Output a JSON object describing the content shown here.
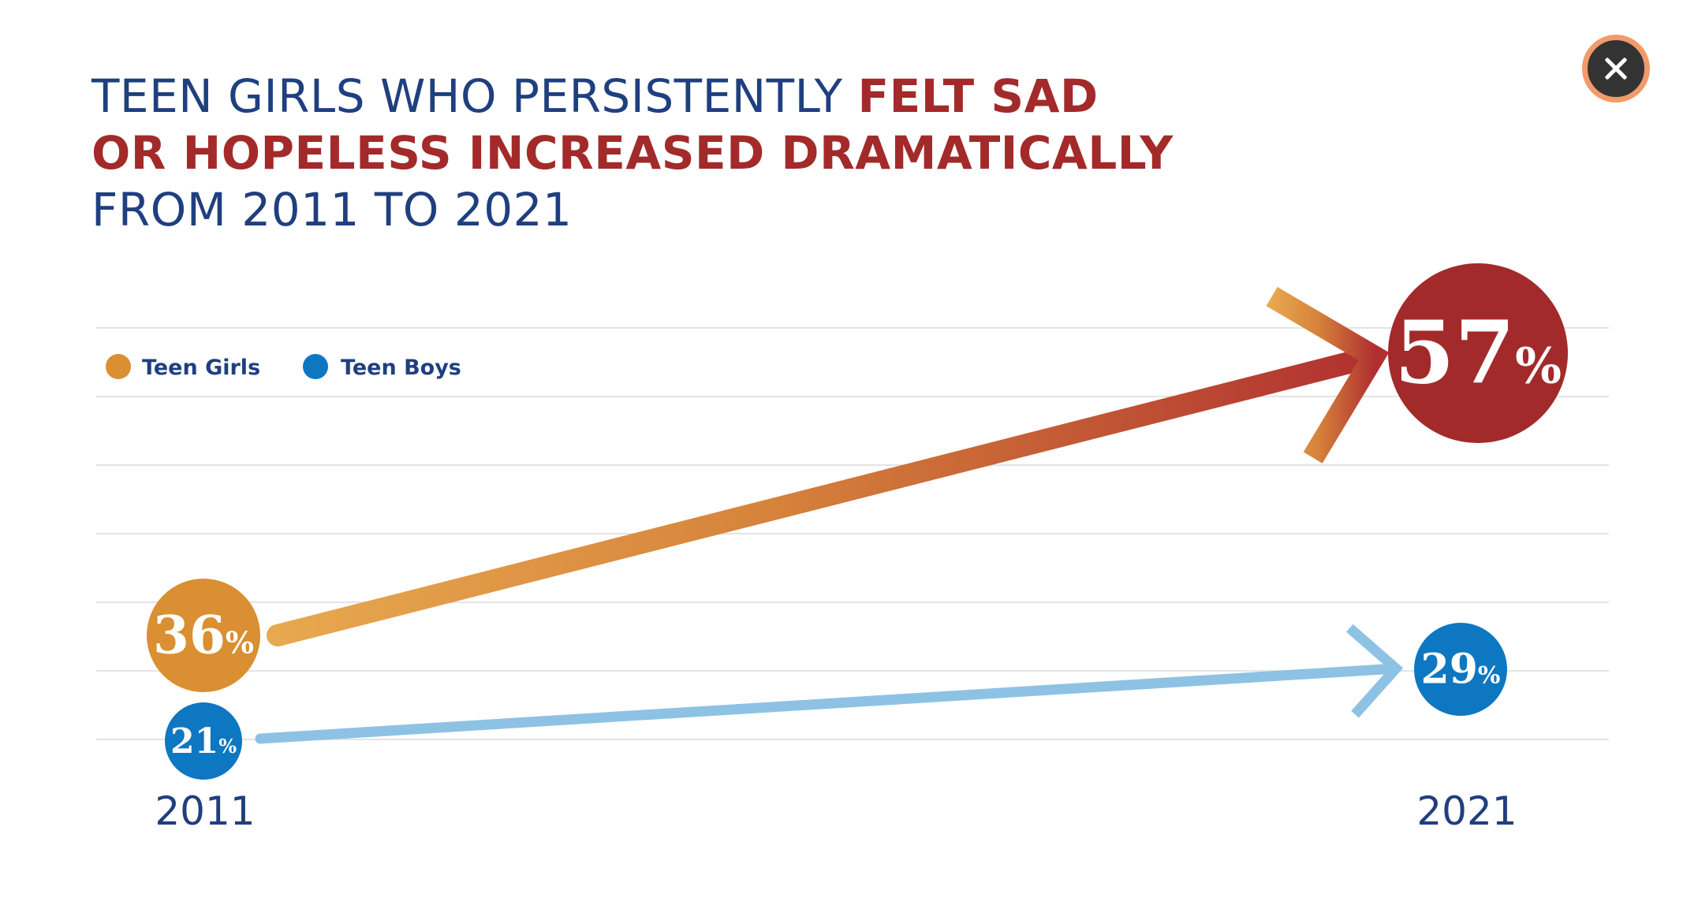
{
  "title": {
    "part1": "TEEN GIRLS WHO PERSISTENTLY ",
    "part2": "FELT SAD",
    "part3": "OR HOPELESS INCREASED DRAMATICALLY",
    "part4": "FROM 2011 TO 2021"
  },
  "close_icon": "close-icon",
  "chart_data": {
    "type": "line",
    "x": [
      "2011",
      "2021"
    ],
    "series": [
      {
        "name": "Teen Girls",
        "values": [
          36,
          57
        ],
        "labels": [
          "36",
          "57"
        ],
        "color": "#d98f32",
        "end_color": "#a32a2a"
      },
      {
        "name": "Teen Boys",
        "values": [
          21,
          29
        ],
        "labels": [
          "21",
          "29"
        ],
        "color": "#0d77c2",
        "line_color": "#8ec2e4"
      }
    ],
    "unit": "%",
    "legend": "top-left",
    "grid": true,
    "ylim": [
      20,
      60
    ]
  }
}
